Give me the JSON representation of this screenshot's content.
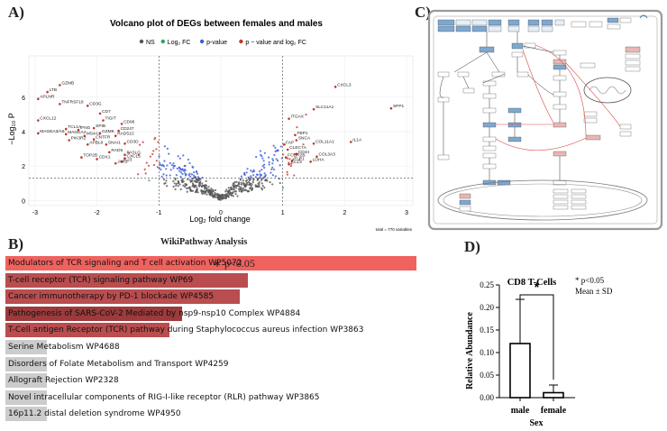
{
  "panel_labels": {
    "a": "A)",
    "b": "B)",
    "c": "C)",
    "d": "D)"
  },
  "volcano": {
    "title": "Volcano plot  of DEGs between females and males",
    "legend": [
      {
        "label": "NS",
        "color": "#555555"
      },
      {
        "label": "Log₂ FC",
        "color": "#2ca25f"
      },
      {
        "label": "p-value",
        "color": "#3b5bdb"
      },
      {
        "label": "p − value and log₂ FC",
        "color": "#c0392b"
      }
    ],
    "xlabel": "Log₂ fold change",
    "ylabel": "−Log₁₀ P",
    "caption": "total = 770 variables"
  },
  "chart_data": [
    {
      "type": "scatter",
      "title": "Volcano plot  of DEGs between females and males",
      "xlabel": "Log₂ fold change",
      "ylabel": "−Log₁₀ P",
      "xlim": [
        -3.1,
        3.1
      ],
      "ylim": [
        -0.3,
        8.4
      ],
      "xticks": [
        -3,
        -2,
        -1,
        0,
        1,
        2,
        3
      ],
      "yticks": [
        0,
        2,
        4,
        6
      ],
      "fc_cutoff": [
        -1,
        1
      ],
      "p_cutoff": 1.3,
      "labeled_points": [
        {
          "label": "GZMB",
          "x": -2.6,
          "y": 6.7
        },
        {
          "label": "LTB",
          "x": -2.8,
          "y": 6.3
        },
        {
          "label": "APLNR",
          "x": -2.95,
          "y": 5.9
        },
        {
          "label": "TNFRSF18",
          "x": -2.6,
          "y": 5.6
        },
        {
          "label": "CD3G",
          "x": -2.15,
          "y": 5.5
        },
        {
          "label": "CD7",
          "x": -1.95,
          "y": 5.05
        },
        {
          "label": "CXCL12",
          "x": -2.95,
          "y": 4.65
        },
        {
          "label": "TIGIT",
          "x": -1.9,
          "y": 4.65
        },
        {
          "label": "CD96",
          "x": -1.6,
          "y": 4.45
        },
        {
          "label": "MAGEA3/A6",
          "x": -2.95,
          "y": 3.9
        },
        {
          "label": "TCL1A",
          "x": -2.5,
          "y": 4.15
        },
        {
          "label": "IFNG",
          "x": -2.3,
          "y": 4.1
        },
        {
          "label": "SPIB",
          "x": -2.05,
          "y": 4.2
        },
        {
          "label": "MAGEA4",
          "x": -2.5,
          "y": 3.85
        },
        {
          "label": "MS4A1",
          "x": -2.2,
          "y": 3.75
        },
        {
          "label": "GZMK",
          "x": -1.95,
          "y": 3.9
        },
        {
          "label": "CD247",
          "x": -1.65,
          "y": 4.05
        },
        {
          "label": "PIK3R2",
          "x": -2.45,
          "y": 3.5
        },
        {
          "label": "RAD51C",
          "x": -1.7,
          "y": 3.75
        },
        {
          "label": "CNTFR",
          "x": -2.05,
          "y": 3.55
        },
        {
          "label": "CD3D",
          "x": -1.55,
          "y": 3.3
        },
        {
          "label": "APBL8",
          "x": -2.15,
          "y": 3.25
        },
        {
          "label": "SNAI1",
          "x": -1.85,
          "y": 3.25
        },
        {
          "label": "RAD5",
          "x": -1.8,
          "y": 2.8
        },
        {
          "label": "TOP2B",
          "x": -2.25,
          "y": 2.5
        },
        {
          "label": "CDX1",
          "x": -2.0,
          "y": 2.4
        },
        {
          "label": "FASLG",
          "x": -1.55,
          "y": 2.65
        },
        {
          "label": "CXCL5",
          "x": -1.55,
          "y": 2.45
        },
        {
          "label": "IL23",
          "x": -1.6,
          "y": 2.25
        },
        {
          "label": "JAK2",
          "x": -1.7,
          "y": 2.15
        },
        {
          "label": "CXCL3",
          "x": 1.85,
          "y": 6.6
        },
        {
          "label": "SLC11A1",
          "x": 1.5,
          "y": 5.3
        },
        {
          "label": "SPP1",
          "x": 2.75,
          "y": 5.35
        },
        {
          "label": "ITGAX",
          "x": 1.1,
          "y": 4.75
        },
        {
          "label": "FBP1",
          "x": 1.2,
          "y": 3.8
        },
        {
          "label": "SNCA",
          "x": 1.22,
          "y": 3.5
        },
        {
          "label": "COL11A1",
          "x": 1.5,
          "y": 3.3
        },
        {
          "label": "IL1A",
          "x": 2.1,
          "y": 3.4
        },
        {
          "label": "FAP",
          "x": 1.02,
          "y": 3.25
        },
        {
          "label": "CLEC7A",
          "x": 1.08,
          "y": 2.95
        },
        {
          "label": "CD44",
          "x": 1.22,
          "y": 2.7
        },
        {
          "label": "FCGR2B",
          "x": 1.05,
          "y": 2.5
        },
        {
          "label": "TLR1",
          "x": 1.15,
          "y": 2.3
        },
        {
          "label": "CCL3",
          "x": 1.1,
          "y": 2.1
        },
        {
          "label": "COL3A3",
          "x": 1.55,
          "y": 2.55
        },
        {
          "label": "LOHA",
          "x": 1.45,
          "y": 2.25
        }
      ]
    },
    {
      "type": "bar",
      "title": "WikiPathway Analysis",
      "orientation": "horizontal",
      "categories": [
        "Modulators of TCR signaling and T cell activation WP5072",
        "T-cell receptor (TCR) signaling pathway WP69",
        "Cancer immunotherapy by PD-1 blockade WP4585",
        "Pathogenesis of SARS-CoV-2 Mediated by nsp9-nsp10 Complex WP4884",
        "T-Cell antigen Receptor (TCR) pathway during Staphylococcus aureus infection WP3863",
        "Serine Metabolism WP4688",
        "Disorders of Folate Metabolism and Transport WP4259",
        "Allograft Rejection WP2328",
        "Novel intracellular components of RIG-I-like receptor (RLR) pathway WP3865",
        "16p11.2 distal deletion syndrome WP4950"
      ],
      "values": [
        1.0,
        0.59,
        0.57,
        0.43,
        0.4,
        0.1,
        0.1,
        0.1,
        0.1,
        0.1
      ],
      "significant": [
        true,
        true,
        true,
        true,
        true,
        false,
        false,
        false,
        false,
        false
      ],
      "annotation": "∗ p<0.05"
    },
    {
      "type": "bar",
      "title": "CD8 T-Cells",
      "categories": [
        "male",
        "female"
      ],
      "values": [
        0.12,
        0.011
      ],
      "errors": [
        0.098,
        0.017
      ],
      "xlabel": "Sex",
      "ylabel": "Relative Abundance",
      "ylim": [
        0,
        0.25
      ],
      "yticks": [
        "0.00",
        "0.05",
        "0.10",
        "0.15",
        "0.20",
        "0.25"
      ],
      "significance": "*",
      "legend_notes": [
        "* p<0.05",
        "Mean ± SD"
      ]
    }
  ],
  "colors": {
    "ns": "#555555",
    "fc": "#2ca25f",
    "pval": "#3b5bdb",
    "both": "#c0392b",
    "bar_sig_top": "#f0625e",
    "bar_sig": "#b94d4f",
    "bar_sig_dark": "#9c3a3c",
    "bar_ns": "#cccccc",
    "blue_box": "#7fa8cf",
    "pink_box": "#e8b7b3"
  },
  "pathway_diagram": {
    "description_free": true
  }
}
